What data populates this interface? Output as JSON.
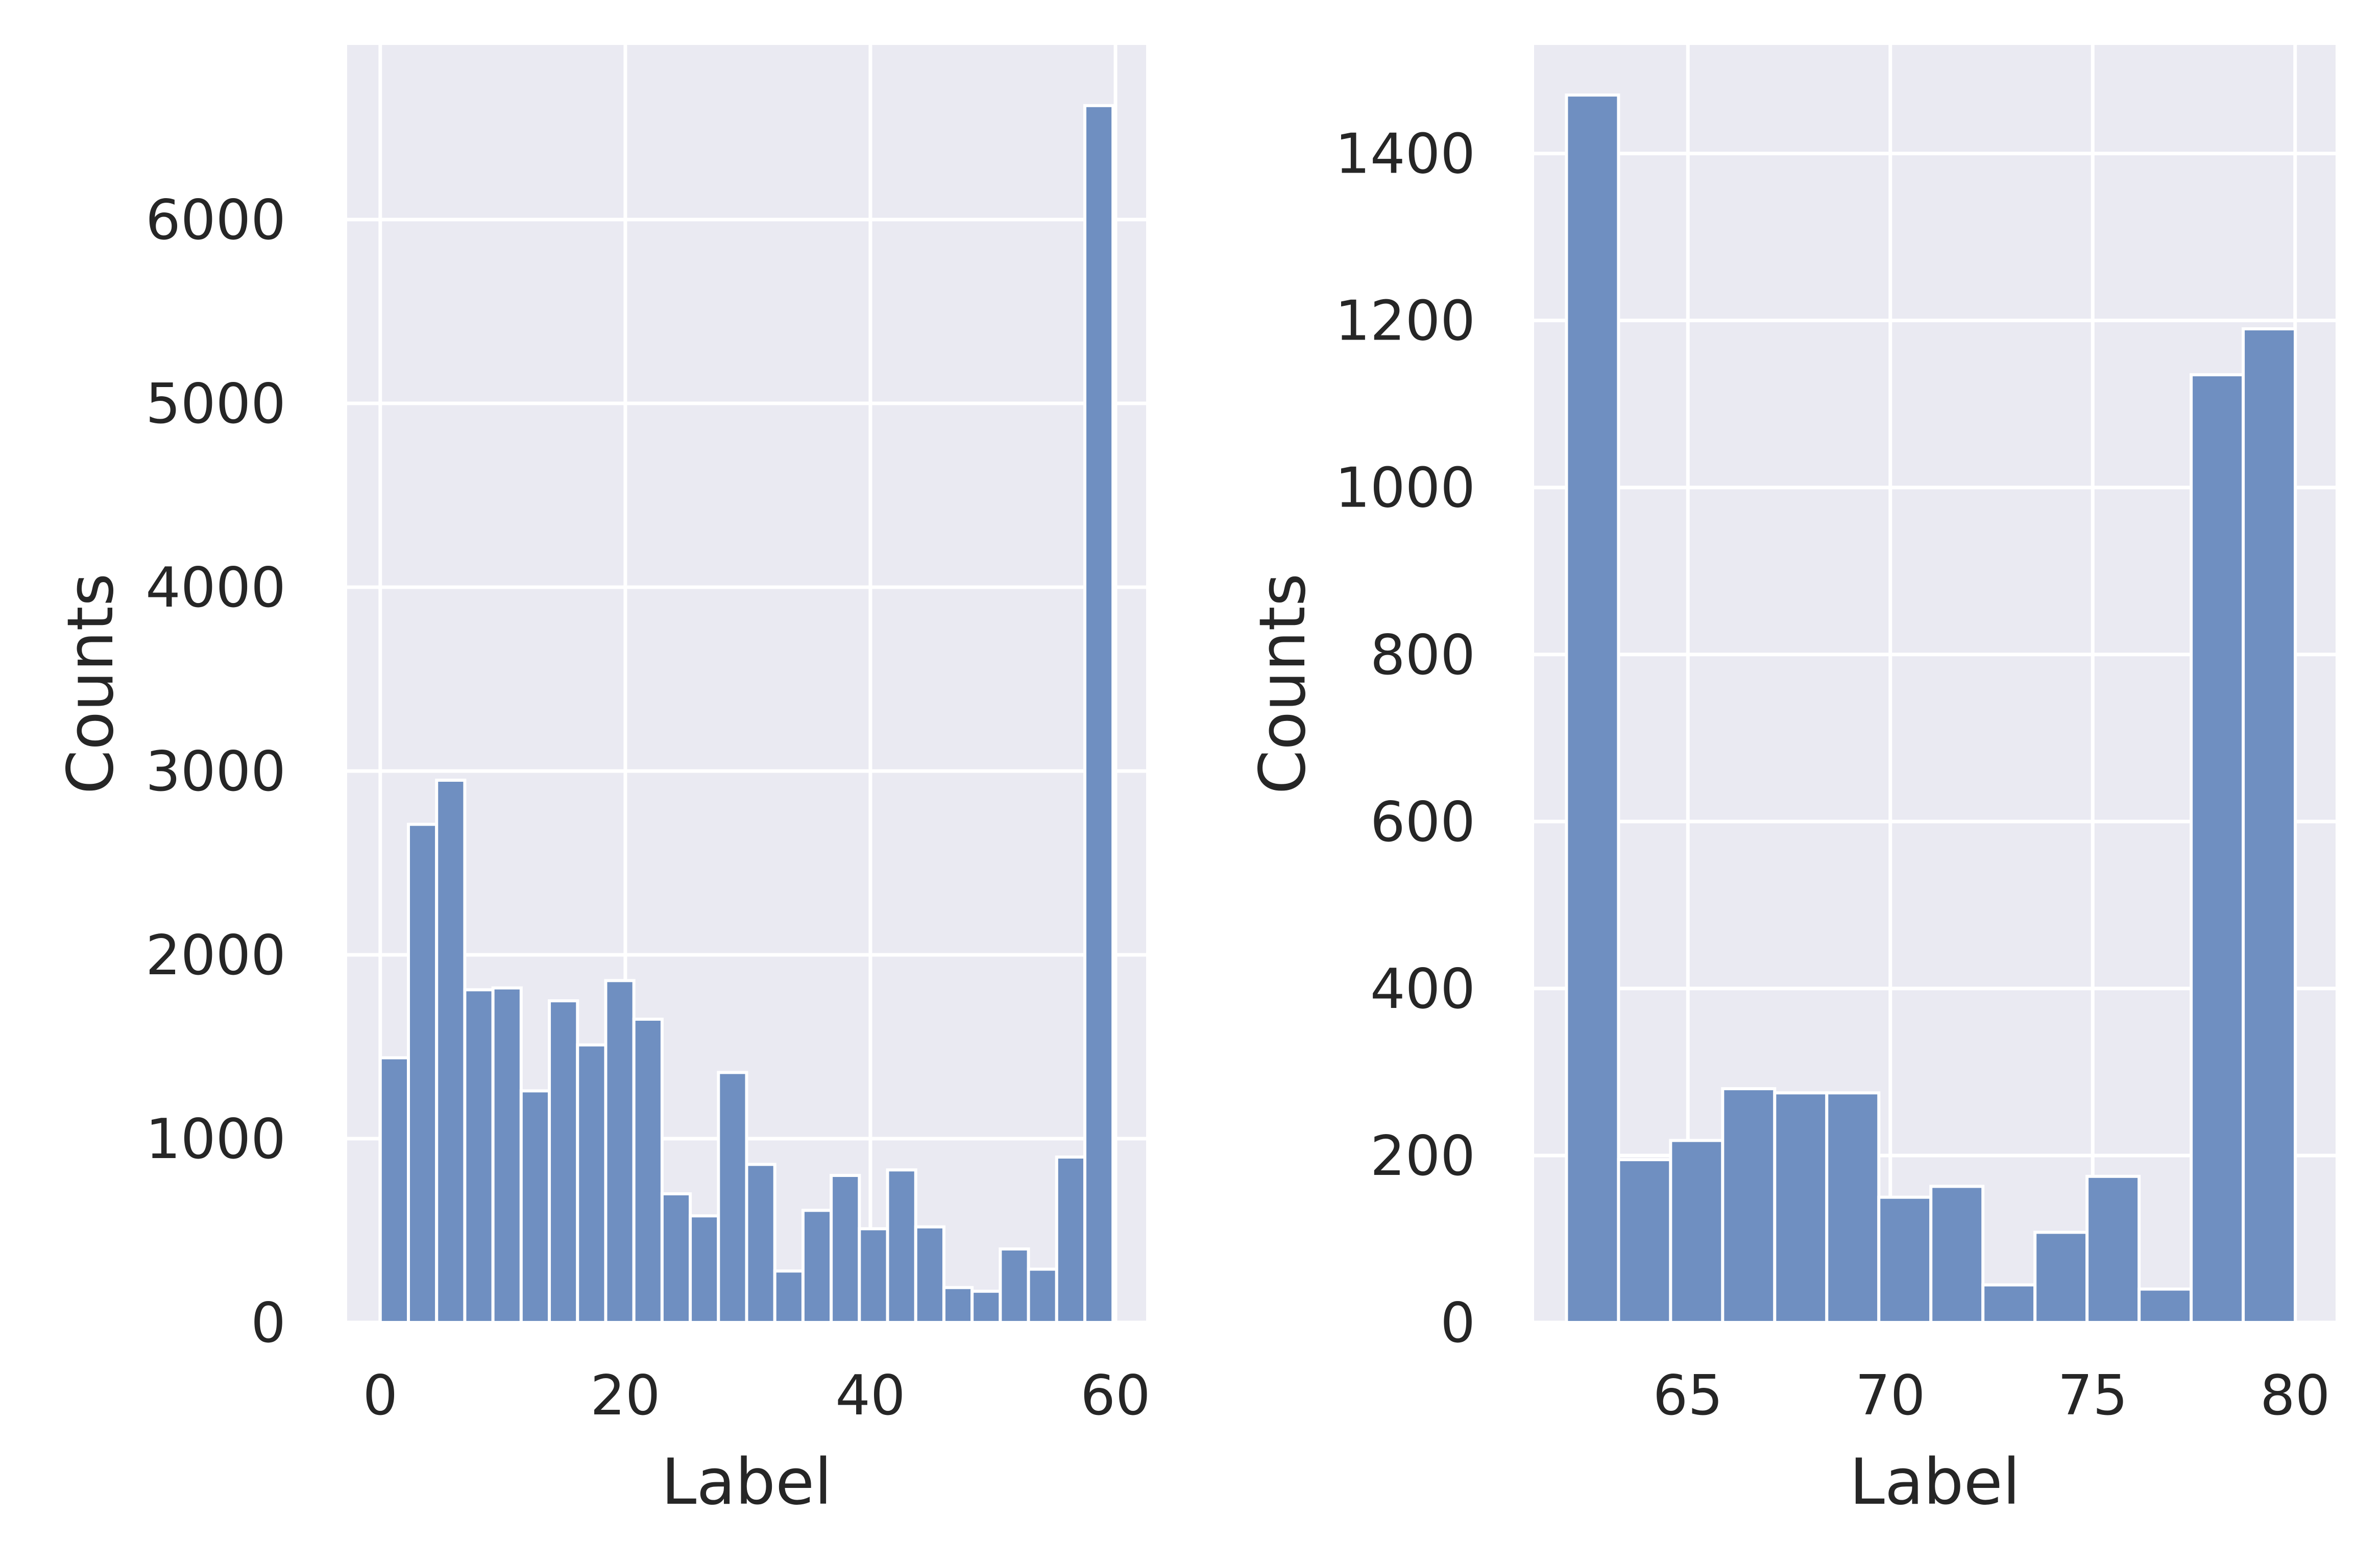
{
  "chart_data": [
    {
      "type": "bar",
      "title": "",
      "xlabel": "Label",
      "ylabel": "Counts",
      "xlim": [
        -2.7,
        62.5
      ],
      "ylim": [
        0,
        6950
      ],
      "xticks": [
        0,
        20,
        40,
        60
      ],
      "yticks": [
        0,
        1000,
        2000,
        3000,
        4000,
        5000,
        6000
      ],
      "grid": true,
      "bin_width": 2.3,
      "bin_start": 0,
      "values": [
        1440,
        2710,
        2950,
        1810,
        1820,
        1260,
        1750,
        1510,
        1860,
        1650,
        700,
        580,
        1360,
        860,
        280,
        610,
        800,
        510,
        830,
        520,
        190,
        170,
        400,
        290,
        900,
        6620
      ]
    },
    {
      "type": "bar",
      "title": "",
      "xlabel": "Label",
      "ylabel": "Counts",
      "xlim": [
        61.2,
        81.0
      ],
      "ylim": [
        0,
        1530
      ],
      "xticks": [
        65,
        70,
        75,
        80
      ],
      "yticks": [
        0,
        200,
        400,
        600,
        800,
        1000,
        1200,
        1400
      ],
      "grid": true,
      "bin_width": 1.286,
      "bin_start": 62,
      "values": [
        1470,
        195,
        218,
        280,
        275,
        275,
        150,
        163,
        45,
        108,
        175,
        40,
        1135,
        1190
      ]
    }
  ],
  "style": {
    "plot_background": "#eaeaf2",
    "grid_color": "#ffffff",
    "bar_fill": "#6f8fc1",
    "bar_edge": "#ffffff",
    "text_color": "#262626"
  }
}
